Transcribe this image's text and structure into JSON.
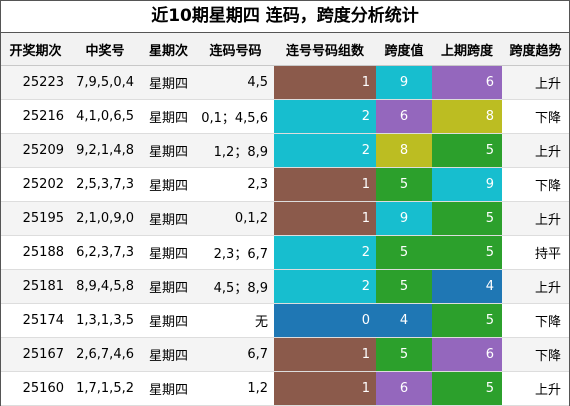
{
  "title": "近10期星期四 连码，跨度分析统计",
  "headers": [
    "开奖期次",
    "中奖号",
    "星期次",
    "连码号码",
    "连号号码组数",
    "跨度值",
    "上期跨度",
    "跨度趋势"
  ],
  "colors": {
    "brown": "#8b5a4b",
    "cyan": "#17becf",
    "purple": "#9467bd",
    "olive": "#bcbd22",
    "green": "#2ca02c",
    "blue": "#1f77b4"
  },
  "rows": [
    {
      "issue": "25223",
      "nums": "7,9,5,0,4",
      "day": "星期四",
      "lian": "4,5",
      "count": "1",
      "count_color": "#8b5a4b",
      "span": "9",
      "span_color": "#17becf",
      "prev": "6",
      "prev_color": "#9467bd",
      "trend": "上升"
    },
    {
      "issue": "25216",
      "nums": "4,1,0,6,5",
      "day": "星期四",
      "lian": "0,1；4,5,6",
      "count": "2",
      "count_color": "#17becf",
      "span": "6",
      "span_color": "#9467bd",
      "prev": "8",
      "prev_color": "#bcbd22",
      "trend": "下降"
    },
    {
      "issue": "25209",
      "nums": "9,2,1,4,8",
      "day": "星期四",
      "lian": "1,2；8,9",
      "count": "2",
      "count_color": "#17becf",
      "span": "8",
      "span_color": "#bcbd22",
      "prev": "5",
      "prev_color": "#2ca02c",
      "trend": "上升"
    },
    {
      "issue": "25202",
      "nums": "2,5,3,7,3",
      "day": "星期四",
      "lian": "2,3",
      "count": "1",
      "count_color": "#8b5a4b",
      "span": "5",
      "span_color": "#2ca02c",
      "prev": "9",
      "prev_color": "#17becf",
      "trend": "下降"
    },
    {
      "issue": "25195",
      "nums": "2,1,0,9,0",
      "day": "星期四",
      "lian": "0,1,2",
      "count": "1",
      "count_color": "#8b5a4b",
      "span": "9",
      "span_color": "#17becf",
      "prev": "5",
      "prev_color": "#2ca02c",
      "trend": "上升"
    },
    {
      "issue": "25188",
      "nums": "6,2,3,7,3",
      "day": "星期四",
      "lian": "2,3；6,7",
      "count": "2",
      "count_color": "#17becf",
      "span": "5",
      "span_color": "#2ca02c",
      "prev": "5",
      "prev_color": "#2ca02c",
      "trend": "持平"
    },
    {
      "issue": "25181",
      "nums": "8,9,4,5,8",
      "day": "星期四",
      "lian": "4,5；8,9",
      "count": "2",
      "count_color": "#17becf",
      "span": "5",
      "span_color": "#2ca02c",
      "prev": "4",
      "prev_color": "#1f77b4",
      "trend": "上升"
    },
    {
      "issue": "25174",
      "nums": "1,3,1,3,5",
      "day": "星期四",
      "lian": "无",
      "count": "0",
      "count_color": "#1f77b4",
      "span": "4",
      "span_color": "#1f77b4",
      "prev": "5",
      "prev_color": "#2ca02c",
      "trend": "下降"
    },
    {
      "issue": "25167",
      "nums": "2,6,7,4,6",
      "day": "星期四",
      "lian": "6,7",
      "count": "1",
      "count_color": "#8b5a4b",
      "span": "5",
      "span_color": "#2ca02c",
      "prev": "6",
      "prev_color": "#9467bd",
      "trend": "下降"
    },
    {
      "issue": "25160",
      "nums": "1,7,1,5,2",
      "day": "星期四",
      "lian": "1,2",
      "count": "1",
      "count_color": "#8b5a4b",
      "span": "6",
      "span_color": "#9467bd",
      "prev": "5",
      "prev_color": "#2ca02c",
      "trend": "上升"
    }
  ]
}
